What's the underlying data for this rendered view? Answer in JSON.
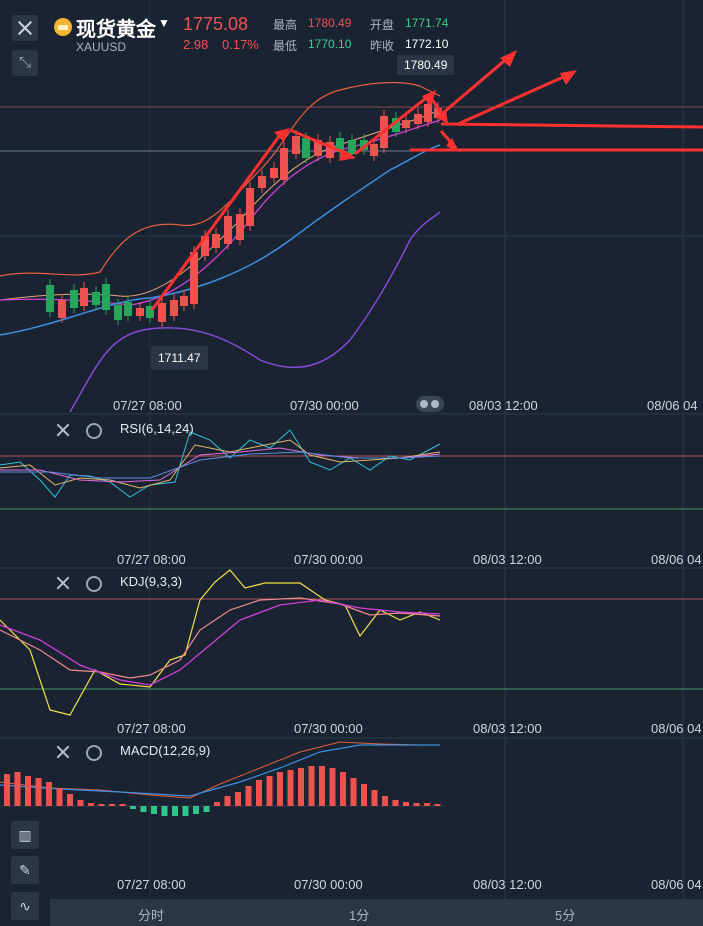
{
  "header": {
    "close_icon": "close-icon",
    "expand_icon": "collapse-arrows-icon",
    "title": "现货黄金",
    "symbol": "XAUUSD",
    "price": "1775.08",
    "change": "2.98",
    "change_pct": "0.17%",
    "quote": {
      "high_label": "最高",
      "high": "1780.49",
      "open_label": "开盘",
      "open": "1771.74",
      "low_label": "最低",
      "low": "1770.10",
      "prev_close_label": "昨收",
      "prev_close": "1772.10"
    }
  },
  "main_chart": {
    "high_marker": "1780.49",
    "low_marker": "1711.47",
    "x_labels": [
      "07/27 08:00",
      "07/30 00:00",
      "08/03 12:00",
      "08/06 04"
    ]
  },
  "indicators": {
    "rsi": {
      "label": "RSI(6,14,24)",
      "x_labels": [
        "07/27 08:00",
        "07/30 00:00",
        "08/03 12:00",
        "08/06 04"
      ]
    },
    "kdj": {
      "label": "KDJ(9,3,3)",
      "x_labels": [
        "07/27 08:00",
        "07/30 00:00",
        "08/03 12:00",
        "08/06 04"
      ]
    },
    "macd": {
      "label": "MACD(12,26,9)",
      "x_labels": [
        "07/27 08:00",
        "07/30 00:00",
        "08/03 12:00",
        "08/06 04"
      ]
    }
  },
  "tools": [
    "candlestick-icon",
    "pen-icon",
    "indicator-icon"
  ],
  "tabs": [
    "分时",
    "1分",
    "5分"
  ],
  "colors": {
    "up": "#ef5350",
    "down": "#26a65b",
    "annotation": "#ff3b3b",
    "background": "#1a2332"
  }
}
